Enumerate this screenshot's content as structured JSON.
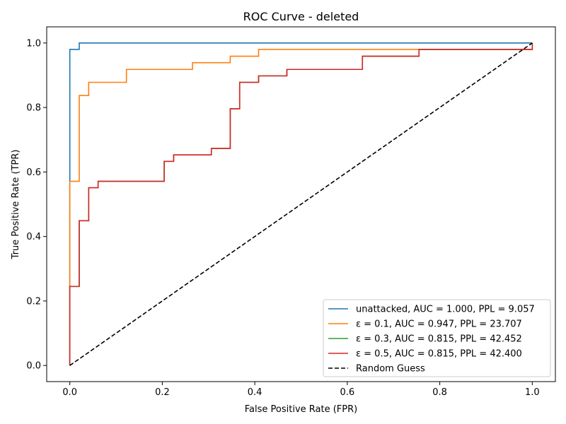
{
  "chart_data": {
    "type": "line",
    "title": "ROC Curve - deleted",
    "xlabel": "False Positive Rate (FPR)",
    "ylabel": "True Positive Rate (TPR)",
    "xlim": [
      -0.05,
      1.05
    ],
    "ylim": [
      -0.05,
      1.05
    ],
    "xticks": [
      0.0,
      0.2,
      0.4,
      0.6,
      0.8,
      1.0
    ],
    "yticks": [
      0.0,
      0.2,
      0.4,
      0.6,
      0.8,
      1.0
    ],
    "xtick_labels": [
      "0.0",
      "0.2",
      "0.4",
      "0.6",
      "0.8",
      "1.0"
    ],
    "ytick_labels": [
      "0.0",
      "0.2",
      "0.4",
      "0.6",
      "0.8",
      "1.0"
    ],
    "grid": false,
    "legend_position": "lower-right",
    "series": [
      {
        "name": "unattacked, AUC = 1.000, PPL = 9.057",
        "color": "#1f77b4",
        "dash": "solid",
        "x": [
          0.0,
          0.0,
          0.0,
          0.0204,
          0.0204,
          1.0
        ],
        "y": [
          0.0,
          0.571,
          0.98,
          0.98,
          1.0,
          1.0
        ]
      },
      {
        "name": "ε = 0.1, AUC = 0.947, PPL = 23.707",
        "color": "#ff7f0e",
        "dash": "solid",
        "x": [
          0.0,
          0.0,
          0.0204,
          0.0204,
          0.0408,
          0.0408,
          0.1224,
          0.1224,
          0.2653,
          0.2653,
          0.3469,
          0.3469,
          0.4082,
          0.4082,
          0.7551,
          0.7551,
          1.0,
          1.0
        ],
        "y": [
          0.0,
          0.571,
          0.571,
          0.837,
          0.837,
          0.878,
          0.878,
          0.918,
          0.918,
          0.939,
          0.939,
          0.959,
          0.959,
          0.98,
          0.98,
          0.98,
          0.98,
          1.0
        ]
      },
      {
        "name": "ε = 0.3, AUC = 0.815, PPL = 42.452",
        "color": "#2ca02c",
        "dash": "solid",
        "x": [
          0.0,
          0.0,
          0.0204,
          0.0204,
          0.0408,
          0.0408,
          0.0612,
          0.0612,
          0.2041,
          0.2041,
          0.2245,
          0.2245,
          0.3061,
          0.3061,
          0.3469,
          0.3469,
          0.3673,
          0.3673,
          0.4082,
          0.4082,
          0.4694,
          0.4694,
          0.6327,
          0.6327,
          0.7551,
          0.7551,
          1.0,
          1.0
        ],
        "y": [
          0.0,
          0.245,
          0.245,
          0.449,
          0.449,
          0.551,
          0.551,
          0.571,
          0.571,
          0.633,
          0.633,
          0.653,
          0.653,
          0.673,
          0.673,
          0.796,
          0.796,
          0.878,
          0.878,
          0.898,
          0.898,
          0.918,
          0.918,
          0.959,
          0.959,
          0.98,
          0.98,
          1.0
        ]
      },
      {
        "name": "ε = 0.5, AUC = 0.815, PPL = 42.400",
        "color": "#d62728",
        "dash": "solid",
        "x": [
          0.0,
          0.0,
          0.0204,
          0.0204,
          0.0408,
          0.0408,
          0.0612,
          0.0612,
          0.2041,
          0.2041,
          0.2245,
          0.2245,
          0.3061,
          0.3061,
          0.3469,
          0.3469,
          0.3673,
          0.3673,
          0.4082,
          0.4082,
          0.4694,
          0.4694,
          0.6327,
          0.6327,
          0.7551,
          0.7551,
          1.0,
          1.0
        ],
        "y": [
          0.0,
          0.245,
          0.245,
          0.449,
          0.449,
          0.551,
          0.551,
          0.571,
          0.571,
          0.633,
          0.633,
          0.653,
          0.653,
          0.673,
          0.673,
          0.796,
          0.796,
          0.878,
          0.878,
          0.898,
          0.898,
          0.918,
          0.918,
          0.959,
          0.959,
          0.98,
          0.98,
          1.0
        ]
      },
      {
        "name": "Random Guess",
        "color": "#000000",
        "dash": "dashed",
        "x": [
          0.0,
          1.0
        ],
        "y": [
          0.0,
          1.0
        ]
      }
    ]
  }
}
